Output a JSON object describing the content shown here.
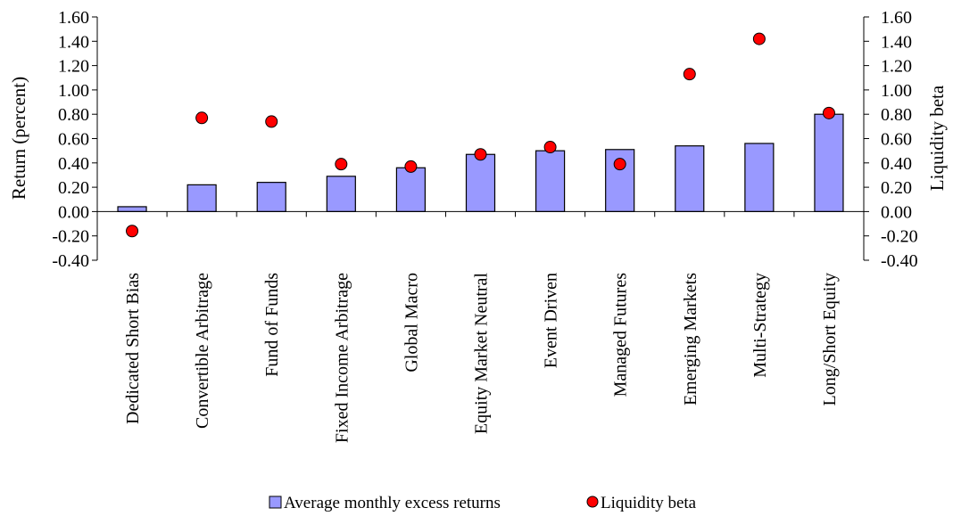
{
  "chart_data": {
    "type": "bar",
    "categories": [
      "Dedicated Short Bias",
      "Convertible Arbitrage",
      "Fund of Funds",
      "Fixed Income Arbitrage",
      "Global Macro",
      "Equity Market Neutral",
      "Event Driven",
      "Managed Futures",
      "Emerging Markets",
      "Multi-Strategy",
      "Long/Short Equity"
    ],
    "series": [
      {
        "name": "Average monthly excess returns",
        "kind": "bar",
        "axis": "left",
        "values": [
          0.04,
          0.22,
          0.24,
          0.29,
          0.36,
          0.47,
          0.5,
          0.51,
          0.54,
          0.56,
          0.8
        ],
        "color": "#9999ff"
      },
      {
        "name": "Liquidity beta",
        "kind": "scatter",
        "axis": "right",
        "values": [
          -0.16,
          0.77,
          0.74,
          0.39,
          0.37,
          0.47,
          0.53,
          0.39,
          1.13,
          1.42,
          0.81
        ],
        "color": "#ff0000"
      }
    ],
    "ylabel": "Return (percent)",
    "y2label": "Liquidity beta",
    "ylim": [
      -0.4,
      1.6
    ],
    "y2lim": [
      -0.4,
      1.6
    ],
    "yticks": [
      "-0.40",
      "-0.20",
      "0.00",
      "0.20",
      "0.40",
      "0.60",
      "0.80",
      "1.00",
      "1.20",
      "1.40",
      "1.60"
    ],
    "y2ticks": [
      "-0.40",
      "-0.20",
      "0.00",
      "0.20",
      "0.40",
      "0.60",
      "0.80",
      "1.00",
      "1.20",
      "1.40",
      "1.60"
    ],
    "grid": false,
    "legend": "bottom"
  }
}
